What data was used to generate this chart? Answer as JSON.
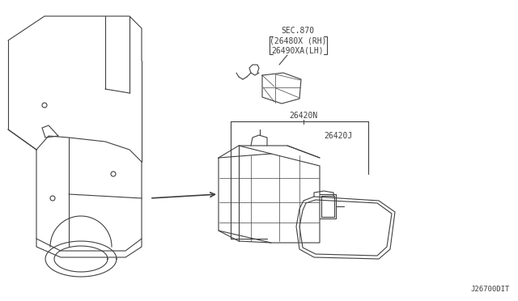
{
  "bg_color": "#ffffff",
  "line_color": "#404040",
  "title_text": "J26700DIT",
  "label_sec870": "SEC.870",
  "label_26480X": "(26480X (RH)",
  "label_26490XA": "26490XA(LH)",
  "label_26420N": "26420N",
  "label_26420J": "26420J",
  "fig_width": 6.4,
  "fig_height": 3.72,
  "dpi": 100
}
